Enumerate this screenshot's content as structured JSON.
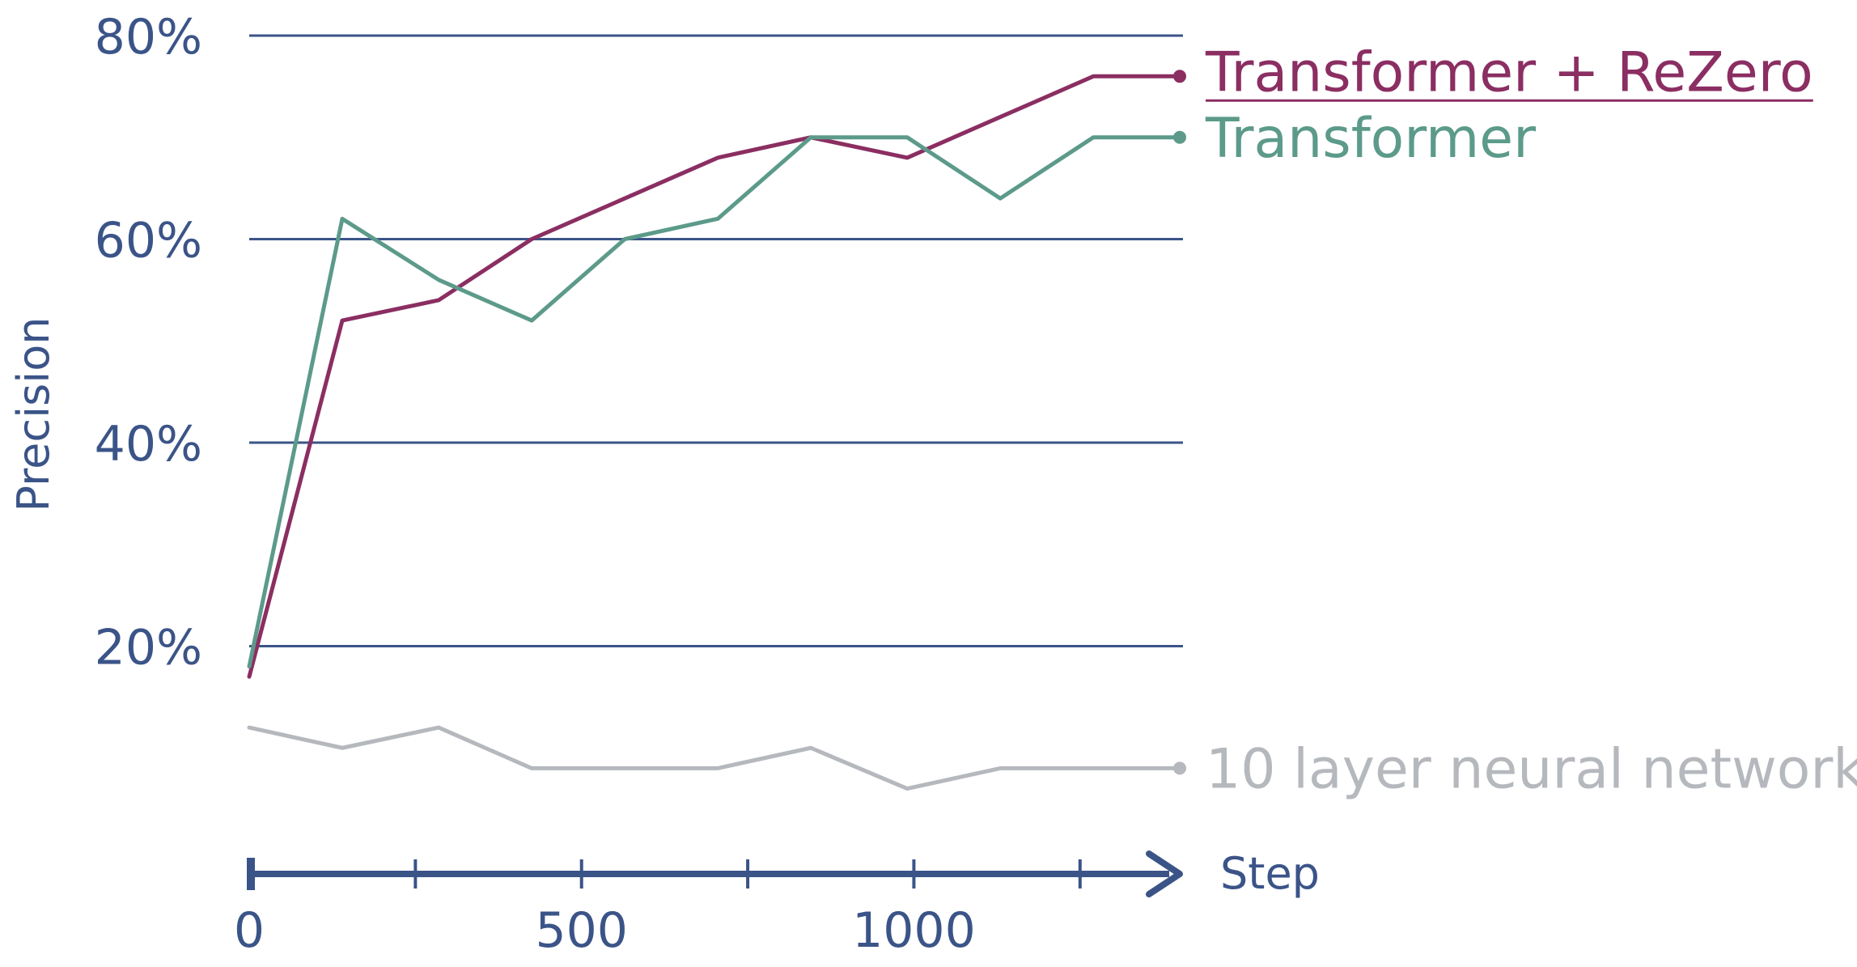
{
  "chart_data": {
    "type": "line",
    "xlabel": "Step",
    "ylabel": "Precision",
    "xlim": [
      0,
      1400
    ],
    "ylim": [
      0,
      80
    ],
    "xticks": [
      0,
      500,
      1000
    ],
    "xtick_labels": [
      "0",
      "500",
      "1000"
    ],
    "minor_xticks": [
      250,
      750,
      1250
    ],
    "yticks": [
      20,
      40,
      60,
      80
    ],
    "ytick_labels": [
      "20%",
      "40%",
      "60%",
      "80%"
    ],
    "grid": true,
    "legend": "inline-right",
    "series": [
      {
        "name": "Transformer + ReZero",
        "color": "#8b2e62",
        "underline": true,
        "x": [
          0,
          140,
          285,
          425,
          565,
          705,
          845,
          990,
          1130,
          1270,
          1400
        ],
        "y": [
          17,
          52,
          54,
          60,
          64,
          68,
          70,
          68,
          72,
          76,
          76
        ]
      },
      {
        "name": "Transformer",
        "color": "#5c9a8a",
        "underline": false,
        "x": [
          0,
          140,
          285,
          425,
          565,
          705,
          845,
          990,
          1130,
          1270,
          1400
        ],
        "y": [
          18,
          62,
          56,
          52,
          60,
          62,
          70,
          70,
          64,
          70,
          70
        ]
      },
      {
        "name": "10 layer neural network",
        "color": "#b5b8bd",
        "underline": false,
        "x": [
          0,
          140,
          285,
          425,
          565,
          705,
          845,
          990,
          1130,
          1270,
          1400
        ],
        "y": [
          12,
          10,
          12,
          8,
          8,
          8,
          10,
          6,
          8,
          8,
          8
        ]
      }
    ]
  }
}
